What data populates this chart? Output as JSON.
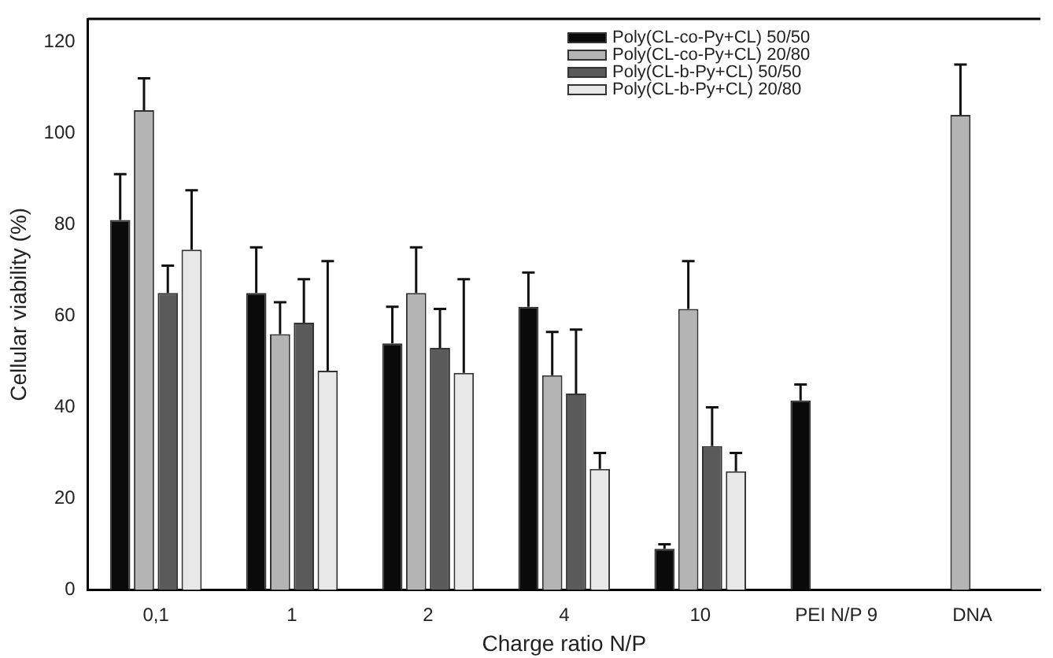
{
  "chart_data": {
    "type": "bar",
    "xlabel": "Charge ratio N/P",
    "ylabel": "Cellular viability (%)",
    "categories": [
      "0,1",
      "1",
      "2",
      "4",
      "10",
      "PEI N/P 9",
      "DNA"
    ],
    "series": [
      {
        "name": "Poly(CL-co-Py+CL) 50/50",
        "color": "#0a0a0a",
        "values": [
          81,
          65,
          54,
          62,
          9,
          41.5,
          null
        ],
        "errors": [
          [
            81,
            91
          ],
          [
            65,
            75
          ],
          [
            54,
            62
          ],
          [
            62,
            69.5
          ],
          [
            9,
            10
          ],
          [
            41.5,
            45
          ],
          null
        ]
      },
      {
        "name": "Poly(CL-co-Py+CL) 20/80",
        "color": "#b4b4b4",
        "values": [
          105,
          56,
          65,
          47,
          61.5,
          null,
          104
        ],
        "errors": [
          [
            105,
            112
          ],
          [
            56,
            63
          ],
          [
            65,
            75
          ],
          [
            47,
            56.5
          ],
          [
            61.5,
            72
          ],
          null,
          [
            104,
            115
          ]
        ]
      },
      {
        "name": "Poly(CL-b-Py+CL) 50/50",
        "color": "#5a5a5a",
        "values": [
          65,
          58.5,
          53,
          43,
          31.5,
          null,
          null
        ],
        "errors": [
          [
            65,
            71
          ],
          [
            58.5,
            68
          ],
          [
            53,
            61.5
          ],
          [
            43,
            57
          ],
          [
            31.5,
            40
          ],
          null,
          null
        ]
      },
      {
        "name": "Poly(CL-b-Py+CL) 20/80",
        "color": "#e8e8e8",
        "values": [
          74.5,
          48,
          47.5,
          26.5,
          26,
          null,
          null
        ],
        "errors": [
          [
            74.5,
            87.5
          ],
          [
            48,
            72
          ],
          [
            47.5,
            68
          ],
          [
            26.5,
            30
          ],
          [
            26,
            30
          ],
          null,
          null
        ]
      }
    ],
    "ylim": [
      0,
      125
    ],
    "yticks": [
      0,
      20,
      40,
      60,
      80,
      100,
      120
    ],
    "grid": false,
    "legend": "top right"
  }
}
